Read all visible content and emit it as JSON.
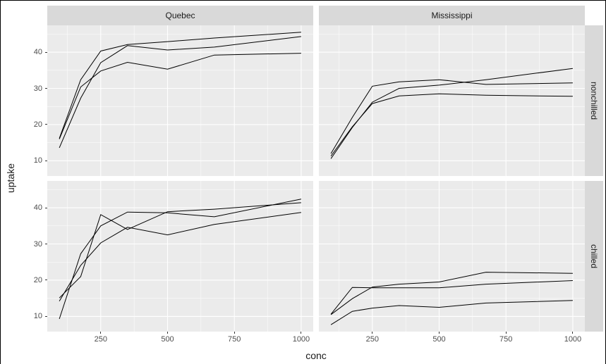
{
  "chart_data": {
    "type": "line",
    "title": "",
    "xlabel": "conc",
    "ylabel": "uptake",
    "grid": true,
    "legend": "none",
    "x": [
      95,
      175,
      250,
      350,
      500,
      675,
      1000
    ],
    "x_domain": [
      50,
      1045
    ],
    "y_domain": [
      5.8,
      47.4
    ],
    "x_ticks": [
      250,
      500,
      750,
      1000
    ],
    "x_minor": [
      125,
      375,
      625,
      875
    ],
    "y_ticks": [
      10,
      20,
      30,
      40
    ],
    "y_minor": [
      15,
      25,
      35,
      45
    ],
    "col_facets": [
      "Quebec",
      "Mississippi"
    ],
    "row_facets": [
      "nonchilled",
      "chilled"
    ],
    "panels": {
      "quebec_nonchilled": {
        "series": [
          {
            "name": "line-1",
            "values": [
              16.0,
              30.4,
              34.8,
              37.2,
              35.3,
              39.2,
              39.7
            ]
          },
          {
            "name": "line-2",
            "values": [
              13.6,
              27.3,
              37.1,
              41.8,
              40.6,
              41.4,
              44.3
            ]
          },
          {
            "name": "line-3",
            "values": [
              16.2,
              32.4,
              40.3,
              42.1,
              42.9,
              43.9,
              45.5
            ]
          }
        ]
      },
      "mississippi_nonchilled": {
        "series": [
          {
            "name": "line-1",
            "values": [
              10.6,
              19.2,
              26.2,
              30.0,
              30.9,
              32.4,
              35.5
            ]
          },
          {
            "name": "line-2",
            "values": [
              12.0,
              22.0,
              30.6,
              31.8,
              32.4,
              31.1,
              31.5
            ]
          },
          {
            "name": "line-3",
            "values": [
              11.3,
              19.4,
              25.8,
              27.9,
              28.5,
              28.1,
              27.8
            ]
          }
        ]
      },
      "quebec_chilled": {
        "series": [
          {
            "name": "line-1",
            "values": [
              14.2,
              24.1,
              30.3,
              34.6,
              32.5,
              35.4,
              38.7
            ]
          },
          {
            "name": "line-2",
            "values": [
              9.3,
              27.3,
              35.0,
              38.8,
              38.6,
              37.5,
              42.4
            ]
          },
          {
            "name": "line-3",
            "values": [
              15.1,
              21.0,
              38.1,
              34.0,
              38.9,
              39.6,
              41.4
            ]
          }
        ]
      },
      "mississippi_chilled": {
        "series": [
          {
            "name": "line-1",
            "values": [
              10.5,
              14.9,
              18.1,
              18.9,
              19.5,
              22.2,
              21.9
            ]
          },
          {
            "name": "line-2",
            "values": [
              7.7,
              11.4,
              12.3,
              13.0,
              12.5,
              13.7,
              14.4
            ]
          },
          {
            "name": "line-3",
            "values": [
              10.6,
              18.0,
              17.9,
              17.9,
              17.9,
              18.9,
              19.9
            ]
          }
        ]
      }
    },
    "colors": {
      "panel_bg": "#EBEBEB",
      "grid_major": "#FFFFFF",
      "grid_minor": "#FFFFFF",
      "strip_bg": "#D9D9D9",
      "line": "#000000",
      "tick_label": "#4D4D4D",
      "tick_mark": "#333333",
      "axis_title": "#1A1A1A"
    }
  }
}
